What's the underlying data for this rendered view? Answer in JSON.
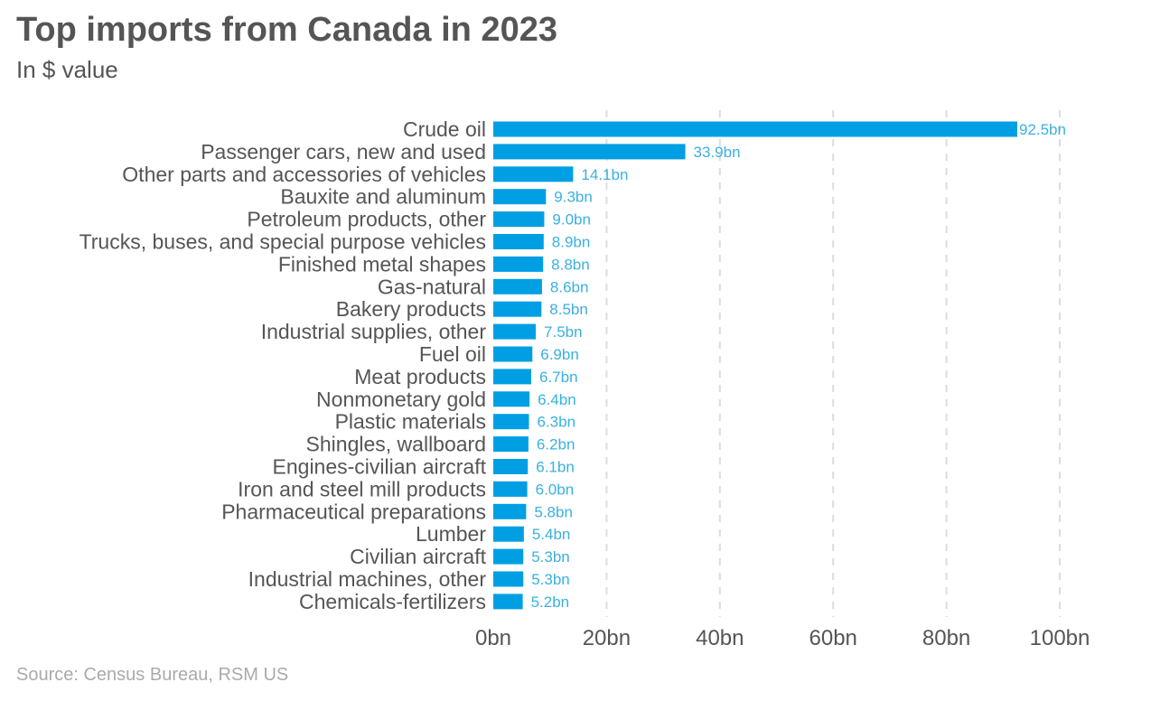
{
  "title": "Top imports from Canada in 2023",
  "subtitle": "In $ value",
  "source": "Source: Census Bureau, RSM US",
  "colors": {
    "bar": "#009fe3",
    "value_label": "#3ab0e2"
  },
  "chart_data": {
    "type": "bar",
    "orientation": "horizontal",
    "title": "Top imports from Canada in 2023",
    "subtitle": "In $ value",
    "xlim": [
      0,
      100
    ],
    "xticks": [
      "0bn",
      "20bn",
      "40bn",
      "60bn",
      "80bn",
      "100bn"
    ],
    "xtick_values": [
      0,
      20,
      40,
      60,
      80,
      100
    ],
    "grid": "vertical dashed",
    "categories": [
      "Crude oil",
      "Passenger cars, new and used",
      "Other parts and accessories of vehicles",
      "Bauxite and aluminum",
      "Petroleum products, other",
      "Trucks, buses, and special purpose vehicles",
      "Finished metal shapes",
      "Gas-natural",
      "Bakery products",
      "Industrial supplies, other",
      "Fuel oil",
      "Meat products",
      "Nonmonetary gold",
      "Plastic materials",
      "Shingles, wallboard",
      "Engines-civilian aircraft",
      "Iron and steel mill products",
      "Pharmaceutical preparations",
      "Lumber",
      "Civilian aircraft",
      "Industrial machines, other",
      "Chemicals-fertilizers"
    ],
    "values": [
      92.5,
      33.9,
      14.1,
      9.3,
      9.0,
      8.9,
      8.8,
      8.6,
      8.5,
      7.5,
      6.9,
      6.7,
      6.4,
      6.3,
      6.2,
      6.1,
      6.0,
      5.8,
      5.4,
      5.3,
      5.3,
      5.2
    ],
    "value_labels": [
      "92.5bn",
      "33.9bn",
      "14.1bn",
      "9.3bn",
      "9.0bn",
      "8.9bn",
      "8.8bn",
      "8.6bn",
      "8.5bn",
      "7.5bn",
      "6.9bn",
      "6.7bn",
      "6.4bn",
      "6.3bn",
      "6.2bn",
      "6.1bn",
      "6.0bn",
      "5.8bn",
      "5.4bn",
      "5.3bn",
      "5.3bn",
      "5.2bn"
    ]
  }
}
